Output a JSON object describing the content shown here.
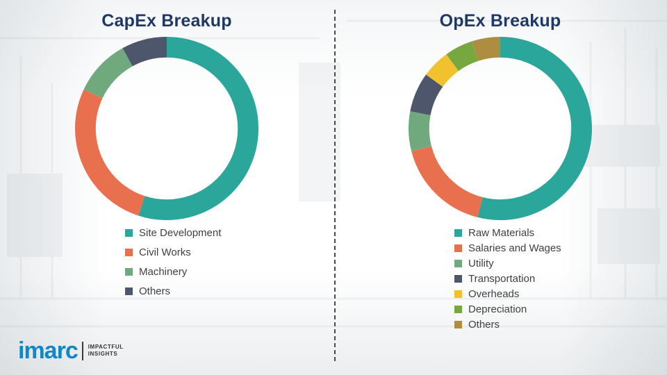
{
  "chart_data": [
    {
      "type": "pie",
      "donut": true,
      "title": "CapEx Breakup",
      "labels": [
        "Site Development",
        "Civil Works",
        "Machinery",
        "Others"
      ],
      "values": [
        55,
        27,
        10,
        8
      ],
      "colors": [
        "#2BA69A",
        "#E8704F",
        "#70A97E",
        "#4E566C"
      ],
      "legend_position": "bottom",
      "start_angle": "top",
      "direction": "clockwise",
      "note": "values are percentages estimated from arc angles; no numeric labels shown in image"
    },
    {
      "type": "pie",
      "donut": true,
      "title": "OpEx Breakup",
      "labels": [
        "Raw Materials",
        "Salaries and Wages",
        "Utility",
        "Transportation",
        "Overheads",
        "Depreciation",
        "Others"
      ],
      "values": [
        54,
        17,
        7,
        7,
        5,
        5,
        5
      ],
      "colors": [
        "#2BA69A",
        "#E8704F",
        "#70A97E",
        "#4E566C",
        "#F2C12E",
        "#76A83F",
        "#AD8D3F"
      ],
      "legend_position": "bottom",
      "start_angle": "top",
      "direction": "clockwise",
      "note": "values are percentages estimated from arc angles; no numeric labels shown in image"
    }
  ],
  "divider": {
    "style": "vertical-dashed"
  },
  "logo": {
    "brand": "imarc",
    "brand_color": "#1287C6",
    "tagline_line1": "IMPACTFUL",
    "tagline_line2": "INSIGHTS"
  }
}
